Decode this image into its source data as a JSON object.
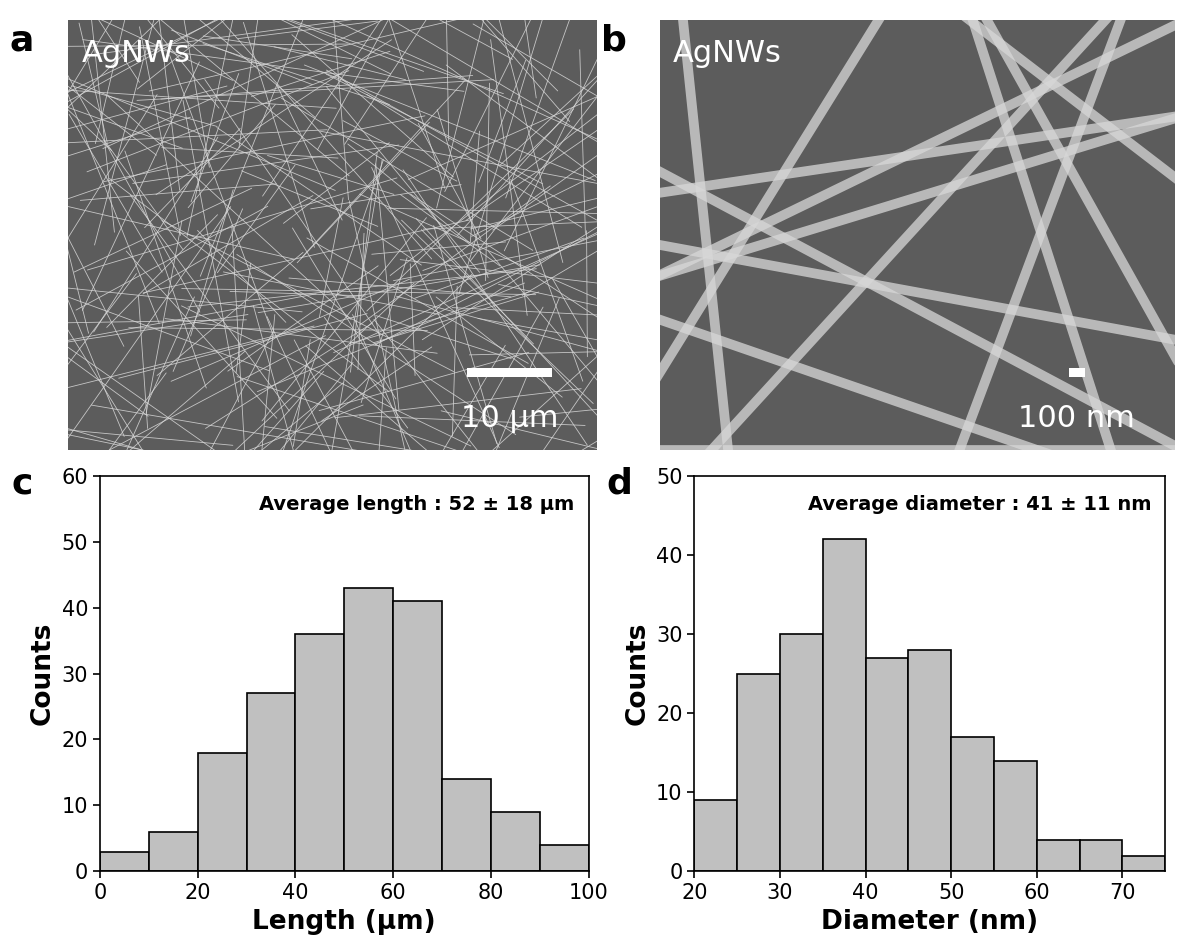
{
  "panel_letters": [
    "a",
    "b",
    "c",
    "d"
  ],
  "images": [
    {
      "label": "AgNWs",
      "scale_bar": "10 μm"
    },
    {
      "label": "AgNWs",
      "scale_bar": "100 nm"
    }
  ],
  "chart_data": [
    {
      "type": "histogram",
      "annotation": "Average length : 52 ± 18 μm",
      "x_label": "Length (μm)",
      "y_label": "Counts",
      "bins": [
        0,
        10,
        20,
        30,
        40,
        50,
        60,
        70,
        80,
        90,
        100
      ],
      "values": [
        3,
        6,
        18,
        27,
        36,
        43,
        41,
        14,
        9,
        4
      ],
      "color": "#c0c0c0",
      "xlim": [
        0,
        100
      ],
      "xticks": [
        0,
        20,
        40,
        60,
        80,
        100
      ],
      "ylim": [
        0,
        60
      ],
      "yticks": [
        0,
        10,
        20,
        30,
        40,
        50,
        60
      ]
    },
    {
      "type": "histogram",
      "annotation": "Average diameter : 41 ± 11 nm",
      "x_label": "Diameter (nm)",
      "y_label": "Counts",
      "bins": [
        20,
        25,
        30,
        35,
        40,
        45,
        50,
        55,
        60,
        65,
        70,
        75
      ],
      "values": [
        9,
        25,
        30,
        42,
        27,
        28,
        17,
        14,
        4,
        4,
        2
      ],
      "color": "#c0c0c0",
      "xlim": [
        20,
        75
      ],
      "xticks": [
        20,
        30,
        40,
        50,
        60,
        70
      ],
      "ylim": [
        0,
        50
      ],
      "yticks": [
        0,
        10,
        20,
        30,
        40,
        50
      ]
    }
  ]
}
